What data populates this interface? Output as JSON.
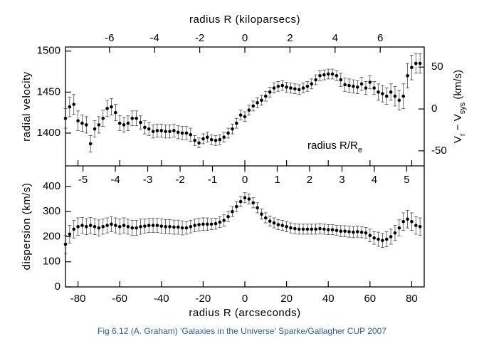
{
  "chart_data": [
    {
      "type": "scatter",
      "xlabel": null,
      "x2label": "radius R (kiloparsecs)",
      "ylabel": "radial velocity",
      "y2label": [
        "V",
        "r",
        " − V",
        "sys",
        " (km/s)"
      ],
      "xlim": [
        -86,
        86
      ],
      "x2lim": [
        -7.95,
        7.95
      ],
      "x2ticks": [
        -6,
        -4,
        -2,
        0,
        2,
        4,
        6
      ],
      "ylim": [
        1360,
        1505
      ],
      "yticks": [
        1400,
        1450,
        1500
      ],
      "y2lim": [
        -68,
        74
      ],
      "y2ticks": [
        -50,
        0,
        50
      ],
      "color": "#000000",
      "x": [
        -86,
        -84,
        -82,
        -80,
        -78,
        -76,
        -74,
        -72,
        -70,
        -68,
        -66,
        -64,
        -62,
        -60,
        -58,
        -56,
        -54,
        -52,
        -50,
        -48,
        -46,
        -44,
        -42,
        -40,
        -38,
        -36,
        -34,
        -32,
        -30,
        -28,
        -26,
        -24,
        -22,
        -20,
        -18,
        -16,
        -14,
        -12,
        -10,
        -8,
        -6,
        -4,
        -2,
        0,
        2,
        4,
        6,
        8,
        10,
        12,
        14,
        16,
        18,
        20,
        22,
        24,
        26,
        28,
        30,
        32,
        34,
        36,
        38,
        40,
        42,
        44,
        46,
        48,
        50,
        52,
        54,
        56,
        58,
        60,
        62,
        64,
        66,
        68,
        70,
        72,
        74,
        76,
        78,
        80,
        82,
        84
      ],
      "values": [
        1418,
        1432,
        1435,
        1415,
        1412,
        1410,
        1387,
        1405,
        1410,
        1418,
        1430,
        1432,
        1425,
        1412,
        1410,
        1412,
        1418,
        1418,
        1413,
        1407,
        1405,
        1402,
        1403,
        1403,
        1402,
        1402,
        1403,
        1401,
        1400,
        1400,
        1398,
        1391,
        1388,
        1393,
        1395,
        1392,
        1391,
        1392,
        1395,
        1400,
        1405,
        1412,
        1422,
        1420,
        1428,
        1433,
        1437,
        1440,
        1445,
        1450,
        1455,
        1457,
        1458,
        1456,
        1455,
        1454,
        1453,
        1455,
        1457,
        1460,
        1465,
        1470,
        1471,
        1472,
        1472,
        1470,
        1465,
        1459,
        1458,
        1457,
        1456,
        1460,
        1455,
        1462,
        1455,
        1450,
        1448,
        1445,
        1450,
        1445,
        1440,
        1445,
        1470,
        1480,
        1485,
        1485
      ],
      "errors": [
        12,
        12,
        12,
        12,
        10,
        10,
        10,
        10,
        10,
        10,
        10,
        10,
        10,
        9,
        9,
        9,
        9,
        9,
        8,
        8,
        8,
        8,
        8,
        8,
        8,
        8,
        8,
        8,
        8,
        8,
        8,
        6,
        6,
        6,
        6,
        6,
        6,
        6,
        6,
        6,
        6,
        6,
        6,
        6,
        6,
        6,
        6,
        6,
        6,
        6,
        6,
        6,
        6,
        6,
        6,
        6,
        6,
        6,
        6,
        6,
        6,
        6,
        6,
        6,
        6,
        6,
        8,
        8,
        8,
        8,
        8,
        8,
        8,
        8,
        8,
        10,
        10,
        10,
        10,
        12,
        12,
        15,
        15,
        15,
        12,
        12
      ]
    },
    {
      "type": "scatter",
      "xlabel": "radius R (arcseconds)",
      "x2label": [
        "radius R/R",
        "e"
      ],
      "ylabel": "dispersion (km/s)",
      "xlim": [
        -86,
        86
      ],
      "xticks": [
        -80,
        -60,
        -40,
        -20,
        0,
        20,
        40,
        60,
        80
      ],
      "x2lim": [
        -5.54,
        5.54
      ],
      "x2ticks": [
        -5,
        -4,
        -3,
        -2,
        -1,
        0,
        1,
        2,
        3,
        4,
        5
      ],
      "ylim": [
        0,
        482
      ],
      "yticks": [
        0,
        100,
        200,
        300,
        400
      ],
      "color": "#000000",
      "x": [
        -86,
        -84,
        -82,
        -80,
        -78,
        -76,
        -74,
        -72,
        -70,
        -68,
        -66,
        -64,
        -62,
        -60,
        -58,
        -56,
        -54,
        -52,
        -50,
        -48,
        -46,
        -44,
        -42,
        -40,
        -38,
        -36,
        -34,
        -32,
        -30,
        -28,
        -26,
        -24,
        -22,
        -20,
        -18,
        -16,
        -14,
        -12,
        -10,
        -8,
        -6,
        -4,
        -2,
        0,
        2,
        4,
        6,
        8,
        10,
        12,
        14,
        16,
        18,
        20,
        22,
        24,
        26,
        28,
        30,
        32,
        34,
        36,
        38,
        40,
        42,
        44,
        46,
        48,
        50,
        52,
        54,
        56,
        58,
        60,
        62,
        64,
        66,
        68,
        70,
        72,
        74,
        76,
        78,
        80,
        82,
        84
      ],
      "values": [
        170,
        210,
        230,
        240,
        245,
        240,
        245,
        240,
        235,
        240,
        245,
        250,
        245,
        240,
        245,
        240,
        235,
        235,
        240,
        242,
        245,
        245,
        245,
        242,
        240,
        240,
        238,
        238,
        235,
        235,
        240,
        245,
        248,
        250,
        250,
        250,
        252,
        258,
        265,
        280,
        300,
        320,
        340,
        355,
        350,
        335,
        315,
        290,
        275,
        262,
        255,
        248,
        245,
        240,
        235,
        232,
        230,
        230,
        230,
        230,
        230,
        232,
        230,
        228,
        228,
        225,
        222,
        222,
        220,
        218,
        220,
        218,
        215,
        205,
        195,
        190,
        185,
        190,
        200,
        215,
        235,
        260,
        270,
        260,
        245,
        240
      ],
      "errors": [
        35,
        35,
        35,
        35,
        32,
        32,
        32,
        32,
        32,
        30,
        30,
        30,
        30,
        30,
        30,
        30,
        30,
        30,
        30,
        28,
        28,
        28,
        28,
        28,
        28,
        28,
        28,
        28,
        28,
        25,
        25,
        25,
        25,
        25,
        25,
        22,
        22,
        22,
        22,
        20,
        20,
        20,
        20,
        20,
        20,
        20,
        20,
        20,
        20,
        20,
        20,
        20,
        20,
        20,
        20,
        20,
        20,
        20,
        20,
        20,
        20,
        20,
        20,
        20,
        20,
        20,
        22,
        22,
        22,
        22,
        22,
        22,
        22,
        25,
        25,
        28,
        28,
        30,
        30,
        30,
        32,
        35,
        35,
        35,
        35,
        35
      ]
    }
  ],
  "caption": "Fig 6.12 (A. Graham) 'Galaxies in the Universe' Sparke/Gallagher CUP 2007"
}
